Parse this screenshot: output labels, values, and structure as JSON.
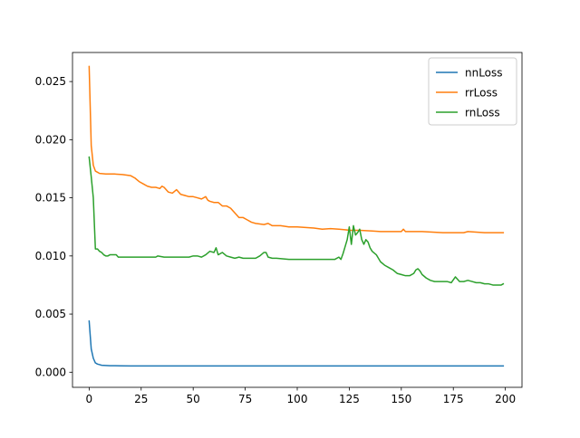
{
  "chart_data": {
    "type": "line",
    "title": "",
    "xlabel": "",
    "ylabel": "",
    "xlim": [
      -8,
      208
    ],
    "ylim": [
      -0.0013,
      0.0275
    ],
    "x_ticks": [
      0,
      25,
      50,
      75,
      100,
      125,
      150,
      175,
      200
    ],
    "y_ticks": [
      0.0,
      0.005,
      0.01,
      0.015,
      0.02,
      0.025
    ],
    "x_tick_labels": [
      "0",
      "25",
      "50",
      "75",
      "100",
      "125",
      "150",
      "175",
      "200"
    ],
    "y_tick_labels": [
      "0.000",
      "0.005",
      "0.010",
      "0.015",
      "0.020",
      "0.025"
    ],
    "grid": false,
    "legend_position": "top-right",
    "series": [
      {
        "name": "nnLoss",
        "color": "#1f77b4",
        "x": [
          0,
          1,
          2,
          3,
          4,
          5,
          6,
          8,
          10,
          15,
          20,
          30,
          40,
          60,
          80,
          100,
          120,
          140,
          160,
          180,
          199
        ],
        "y": [
          0.0044,
          0.002,
          0.0012,
          0.0008,
          0.0007,
          0.00065,
          0.0006,
          0.00058,
          0.00056,
          0.00055,
          0.00054,
          0.00054,
          0.00054,
          0.00054,
          0.00054,
          0.00054,
          0.00054,
          0.00054,
          0.00054,
          0.00054,
          0.00054
        ]
      },
      {
        "name": "rrLoss",
        "color": "#ff7f0e",
        "x": [
          0,
          1,
          2,
          3,
          4,
          5,
          8,
          12,
          16,
          20,
          22,
          24,
          26,
          28,
          30,
          32,
          34,
          35,
          36,
          38,
          40,
          42,
          44,
          46,
          48,
          50,
          52,
          54,
          56,
          57,
          58,
          60,
          62,
          64,
          66,
          68,
          70,
          72,
          74,
          76,
          78,
          80,
          84,
          86,
          88,
          92,
          96,
          100,
          104,
          108,
          112,
          116,
          120,
          126,
          130,
          136,
          140,
          146,
          150,
          151,
          152,
          156,
          160,
          170,
          176,
          180,
          182,
          190,
          199
        ],
        "y": [
          0.0263,
          0.0195,
          0.0178,
          0.0173,
          0.0172,
          0.0171,
          0.01705,
          0.01705,
          0.017,
          0.0169,
          0.0167,
          0.0164,
          0.0162,
          0.016,
          0.0159,
          0.0159,
          0.0158,
          0.016,
          0.0159,
          0.0155,
          0.0154,
          0.0157,
          0.0153,
          0.0152,
          0.0151,
          0.0151,
          0.015,
          0.0149,
          0.0151,
          0.0148,
          0.0147,
          0.0146,
          0.0146,
          0.0143,
          0.0143,
          0.0141,
          0.0137,
          0.0133,
          0.0133,
          0.0131,
          0.0129,
          0.0128,
          0.0127,
          0.0128,
          0.0126,
          0.0126,
          0.0125,
          0.0125,
          0.01245,
          0.0124,
          0.0123,
          0.01235,
          0.0123,
          0.0122,
          0.0122,
          0.01215,
          0.0121,
          0.0121,
          0.0121,
          0.0123,
          0.0121,
          0.0121,
          0.0121,
          0.012,
          0.012,
          0.012,
          0.0121,
          0.012,
          0.012
        ]
      },
      {
        "name": "rnLoss",
        "color": "#2ca02c",
        "x": [
          0,
          1,
          2,
          3,
          4,
          5,
          6,
          7,
          8,
          9,
          10,
          11,
          12,
          13,
          14,
          16,
          20,
          24,
          28,
          32,
          33,
          36,
          40,
          44,
          48,
          50,
          52,
          54,
          56,
          58,
          60,
          61,
          62,
          64,
          66,
          68,
          70,
          72,
          74,
          76,
          78,
          80,
          82,
          84,
          85,
          86,
          88,
          90,
          96,
          100,
          104,
          108,
          112,
          116,
          118,
          120,
          121,
          122,
          123,
          124,
          125,
          126,
          127,
          128,
          129,
          130,
          131,
          132,
          133,
          134,
          135,
          136,
          138,
          140,
          142,
          144,
          146,
          148,
          150,
          152,
          154,
          156,
          157,
          158,
          159,
          160,
          162,
          164,
          166,
          168,
          170,
          172,
          174,
          176,
          178,
          180,
          182,
          184,
          186,
          188,
          190,
          192,
          194,
          196,
          198,
          199
        ],
        "y": [
          0.0185,
          0.0168,
          0.015,
          0.0106,
          0.0106,
          0.0104,
          0.0103,
          0.0101,
          0.01,
          0.01,
          0.0101,
          0.0101,
          0.0101,
          0.0101,
          0.0099,
          0.0099,
          0.0099,
          0.0099,
          0.0099,
          0.0099,
          0.01,
          0.0099,
          0.0099,
          0.0099,
          0.0099,
          0.01,
          0.01,
          0.0099,
          0.0101,
          0.0104,
          0.0103,
          0.0107,
          0.0101,
          0.0103,
          0.01,
          0.0099,
          0.0098,
          0.0099,
          0.0098,
          0.0098,
          0.0098,
          0.0098,
          0.01,
          0.0103,
          0.0103,
          0.0099,
          0.0098,
          0.0098,
          0.0097,
          0.0097,
          0.0097,
          0.0097,
          0.0097,
          0.0097,
          0.0097,
          0.0099,
          0.0097,
          0.0102,
          0.0108,
          0.0114,
          0.0125,
          0.011,
          0.0126,
          0.0118,
          0.012,
          0.0123,
          0.0114,
          0.011,
          0.0114,
          0.0112,
          0.0107,
          0.0104,
          0.0101,
          0.0095,
          0.0092,
          0.009,
          0.0088,
          0.0085,
          0.0084,
          0.0083,
          0.0083,
          0.0085,
          0.0088,
          0.0089,
          0.0087,
          0.0084,
          0.0081,
          0.0079,
          0.0078,
          0.0078,
          0.0078,
          0.0078,
          0.0077,
          0.0082,
          0.0078,
          0.0078,
          0.0079,
          0.0078,
          0.0077,
          0.0077,
          0.0076,
          0.0076,
          0.0075,
          0.0075,
          0.0075,
          0.0076
        ]
      }
    ]
  }
}
